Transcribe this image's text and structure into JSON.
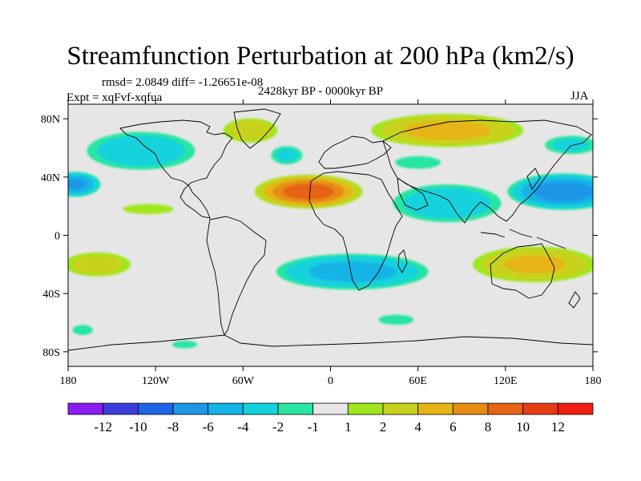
{
  "title": "Streamfunction Perturbation at 200 hPa (km2/s)",
  "stats": "rmsd= 2.0849 diff= -1.26651e-08",
  "experiment": "Expt = xqFvf-xqfua",
  "period": "2428kyr BP - 0000kyr BP",
  "season": "JJA",
  "chart_data": {
    "type": "heatmap",
    "title": "Streamfunction Perturbation at 200 hPa (km2/s)",
    "units": "km2/s",
    "projection": "cylindrical equidistant",
    "xlim": [
      -180,
      180
    ],
    "ylim": [
      -90,
      90
    ],
    "x_ticks": [
      {
        "value": -180,
        "label": "180"
      },
      {
        "value": -120,
        "label": "120W"
      },
      {
        "value": -60,
        "label": "60W"
      },
      {
        "value": 0,
        "label": "0"
      },
      {
        "value": 60,
        "label": "60E"
      },
      {
        "value": 120,
        "label": "120E"
      },
      {
        "value": 180,
        "label": "180"
      }
    ],
    "y_ticks": [
      {
        "value": 80,
        "label": "80N"
      },
      {
        "value": 40,
        "label": "40N"
      },
      {
        "value": 0,
        "label": "0"
      },
      {
        "value": -40,
        "label": "40S"
      },
      {
        "value": -80,
        "label": "80S"
      }
    ],
    "colorbar": {
      "labels": [
        "-12",
        "-10",
        "-8",
        "-6",
        "-4",
        "-2",
        "-1",
        "1",
        "2",
        "4",
        "6",
        "8",
        "10",
        "12"
      ],
      "colors": [
        "#8a1ef0",
        "#3c3cdc",
        "#1e64e6",
        "#1e96e6",
        "#14b4e6",
        "#14d2dc",
        "#28e6a0",
        "#e6e6e6",
        "#a0e61e",
        "#c8d21e",
        "#e6b414",
        "#e68c14",
        "#e66414",
        "#e63c14",
        "#f01e14"
      ]
    },
    "anomalies": [
      {
        "lon": -175,
        "lat": 35,
        "value": -6,
        "rlon": 18,
        "rlat": 9
      },
      {
        "lon": -130,
        "lat": 58,
        "value": -3,
        "rlon": 40,
        "rlat": 14
      },
      {
        "lon": -160,
        "lat": -20,
        "value": 2.5,
        "rlon": 25,
        "rlat": 9
      },
      {
        "lon": -170,
        "lat": -65,
        "value": -1.5,
        "rlon": 8,
        "rlat": 4
      },
      {
        "lon": -100,
        "lat": -75,
        "value": -1.5,
        "rlon": 10,
        "rlat": 3
      },
      {
        "lon": -55,
        "lat": 72,
        "value": 3,
        "rlon": 20,
        "rlat": 9
      },
      {
        "lon": -30,
        "lat": 55,
        "value": -2,
        "rlon": 12,
        "rlat": 7
      },
      {
        "lon": -15,
        "lat": 30,
        "value": 9,
        "rlon": 38,
        "rlat": 12
      },
      {
        "lon": -125,
        "lat": 18,
        "value": 1.5,
        "rlon": 20,
        "rlat": 4
      },
      {
        "lon": 15,
        "lat": -25,
        "value": -4.5,
        "rlon": 55,
        "rlat": 13
      },
      {
        "lon": 45,
        "lat": -58,
        "value": -1.5,
        "rlon": 14,
        "rlat": 4
      },
      {
        "lon": 80,
        "lat": 72,
        "value": 4.5,
        "rlon": 55,
        "rlat": 12
      },
      {
        "lon": 60,
        "lat": 50,
        "value": -1.5,
        "rlon": 18,
        "rlat": 5
      },
      {
        "lon": 80,
        "lat": 22,
        "value": -3,
        "rlon": 40,
        "rlat": 14
      },
      {
        "lon": 160,
        "lat": 30,
        "value": -7,
        "rlon": 40,
        "rlat": 13
      },
      {
        "lon": 165,
        "lat": 62,
        "value": -2,
        "rlon": 20,
        "rlat": 7
      },
      {
        "lon": 140,
        "lat": -20,
        "value": 4,
        "rlon": 45,
        "rlat": 13
      }
    ]
  }
}
